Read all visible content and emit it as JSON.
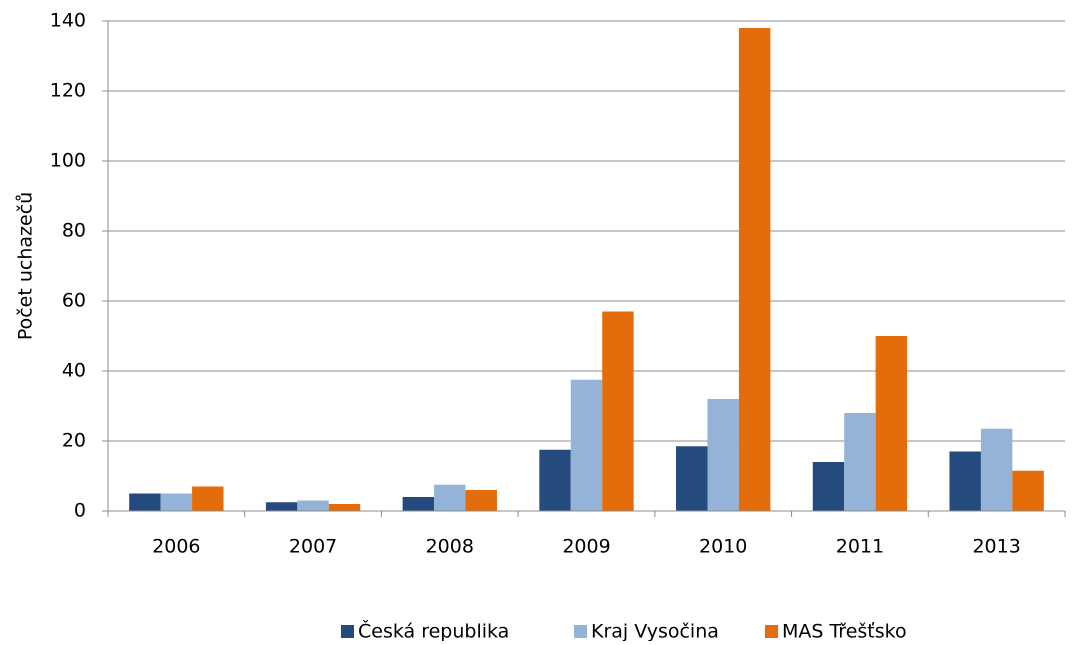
{
  "chart_data": {
    "type": "bar",
    "y_label": "Počet uchazečů",
    "categories": [
      "2006",
      "2007",
      "2008",
      "2009",
      "2010",
      "2011",
      "2013"
    ],
    "series": [
      {
        "name": "Česká republika",
        "color": "#254a7e",
        "values": [
          5,
          2.5,
          4,
          17.5,
          18.5,
          14,
          17
        ]
      },
      {
        "name": "Kraj Vysočina",
        "color": "#95b3d7",
        "values": [
          5,
          3,
          7.5,
          37.5,
          32,
          28,
          23.5
        ]
      },
      {
        "name": "MAS Třešťsko",
        "color": "#e46c0a",
        "values": [
          7,
          2,
          6,
          57,
          138,
          50,
          11.5
        ]
      }
    ],
    "ylim": [
      0,
      140
    ],
    "yticks": [
      0,
      20,
      40,
      60,
      80,
      100,
      120,
      140
    ],
    "grid": true,
    "legend": "bottom"
  }
}
